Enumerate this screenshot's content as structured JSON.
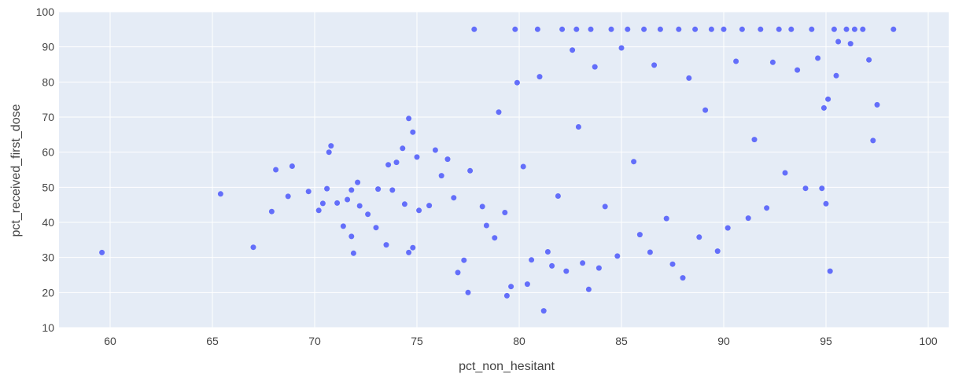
{
  "chart_data": {
    "type": "scatter",
    "xlabel": "pct_non_hesitant",
    "ylabel": "pct_received_first_dose",
    "xlim": [
      57.5,
      101
    ],
    "ylim": [
      10,
      100
    ],
    "xticks": [
      60,
      65,
      70,
      75,
      80,
      85,
      90,
      95,
      100
    ],
    "yticks": [
      10,
      20,
      30,
      40,
      50,
      60,
      70,
      80,
      90,
      100
    ],
    "grid": true,
    "colors": {
      "marker": "#636efa",
      "plot_bg": "#e5ecf6",
      "grid": "#ffffff",
      "text": "#444444"
    },
    "series": [
      {
        "points": [
          [
            59.6,
            31.4
          ],
          [
            65.4,
            48.1
          ],
          [
            67.0,
            32.9
          ],
          [
            67.9,
            43.1
          ],
          [
            68.1,
            55.0
          ],
          [
            68.7,
            47.4
          ],
          [
            68.9,
            56.0
          ],
          [
            69.7,
            48.8
          ],
          [
            70.2,
            43.4
          ],
          [
            70.4,
            45.4
          ],
          [
            70.6,
            49.6
          ],
          [
            70.7,
            60.0
          ],
          [
            70.8,
            61.8
          ],
          [
            71.1,
            45.5
          ],
          [
            71.4,
            38.9
          ],
          [
            71.6,
            46.5
          ],
          [
            71.8,
            49.2
          ],
          [
            71.8,
            36.0
          ],
          [
            71.9,
            31.2
          ],
          [
            72.1,
            51.4
          ],
          [
            72.2,
            44.7
          ],
          [
            72.6,
            42.3
          ],
          [
            73.0,
            38.5
          ],
          [
            73.1,
            49.5
          ],
          [
            73.5,
            33.6
          ],
          [
            73.6,
            56.4
          ],
          [
            73.8,
            49.2
          ],
          [
            74.0,
            57.1
          ],
          [
            74.3,
            61.1
          ],
          [
            74.4,
            45.2
          ],
          [
            74.6,
            69.6
          ],
          [
            74.8,
            65.7
          ],
          [
            74.6,
            31.4
          ],
          [
            74.8,
            32.8
          ],
          [
            75.0,
            58.6
          ],
          [
            75.1,
            43.4
          ],
          [
            75.6,
            44.8
          ],
          [
            75.9,
            60.6
          ],
          [
            76.2,
            53.3
          ],
          [
            76.5,
            58.0
          ],
          [
            76.8,
            47.0
          ],
          [
            77.0,
            25.7
          ],
          [
            77.3,
            29.2
          ],
          [
            77.5,
            20.0
          ],
          [
            77.6,
            54.7
          ],
          [
            77.8,
            95.0
          ],
          [
            78.2,
            44.5
          ],
          [
            78.4,
            39.1
          ],
          [
            78.8,
            35.6
          ],
          [
            79.0,
            71.4
          ],
          [
            79.3,
            42.8
          ],
          [
            79.4,
            19.1
          ],
          [
            79.6,
            21.7
          ],
          [
            79.8,
            95.0
          ],
          [
            79.9,
            79.8
          ],
          [
            80.2,
            55.9
          ],
          [
            80.4,
            22.4
          ],
          [
            80.6,
            29.3
          ],
          [
            80.9,
            95.0
          ],
          [
            81.0,
            81.5
          ],
          [
            81.2,
            14.8
          ],
          [
            81.4,
            31.6
          ],
          [
            81.6,
            27.6
          ],
          [
            81.9,
            47.5
          ],
          [
            82.1,
            95.0
          ],
          [
            82.3,
            26.1
          ],
          [
            82.6,
            89.1
          ],
          [
            82.8,
            95.0
          ],
          [
            82.9,
            67.2
          ],
          [
            83.1,
            28.4
          ],
          [
            83.4,
            20.9
          ],
          [
            83.5,
            95.0
          ],
          [
            83.7,
            84.3
          ],
          [
            83.9,
            27.0
          ],
          [
            84.2,
            44.5
          ],
          [
            84.5,
            95.0
          ],
          [
            84.8,
            30.4
          ],
          [
            85.0,
            89.7
          ],
          [
            85.3,
            95.0
          ],
          [
            85.6,
            57.3
          ],
          [
            85.9,
            36.5
          ],
          [
            86.1,
            95.0
          ],
          [
            86.4,
            31.5
          ],
          [
            86.6,
            84.8
          ],
          [
            86.9,
            95.0
          ],
          [
            87.2,
            41.1
          ],
          [
            87.5,
            28.1
          ],
          [
            87.8,
            95.0
          ],
          [
            88.0,
            24.2
          ],
          [
            88.3,
            81.1
          ],
          [
            88.6,
            95.0
          ],
          [
            88.8,
            35.8
          ],
          [
            89.1,
            72.0
          ],
          [
            89.4,
            95.0
          ],
          [
            89.7,
            31.8
          ],
          [
            90.0,
            95.0
          ],
          [
            90.2,
            38.4
          ],
          [
            90.6,
            85.9
          ],
          [
            90.9,
            95.0
          ],
          [
            91.2,
            41.2
          ],
          [
            91.5,
            63.6
          ],
          [
            91.8,
            95.0
          ],
          [
            92.1,
            44.1
          ],
          [
            92.4,
            85.6
          ],
          [
            92.7,
            95.0
          ],
          [
            93.0,
            54.1
          ],
          [
            93.3,
            95.0
          ],
          [
            93.6,
            83.4
          ],
          [
            94.0,
            49.7
          ],
          [
            94.3,
            95.0
          ],
          [
            94.6,
            86.8
          ],
          [
            94.8,
            49.7
          ],
          [
            95.0,
            45.3
          ],
          [
            95.2,
            26.1
          ],
          [
            95.4,
            95.0
          ],
          [
            95.6,
            91.5
          ],
          [
            96.0,
            95.0
          ],
          [
            96.4,
            95.0
          ],
          [
            96.8,
            95.0
          ],
          [
            97.1,
            86.3
          ],
          [
            97.3,
            63.3
          ],
          [
            97.5,
            73.5
          ],
          [
            98.3,
            95.0
          ],
          [
            95.5,
            81.8
          ],
          [
            95.1,
            75.1
          ],
          [
            94.9,
            72.6
          ],
          [
            96.2,
            90.9
          ]
        ]
      }
    ]
  }
}
